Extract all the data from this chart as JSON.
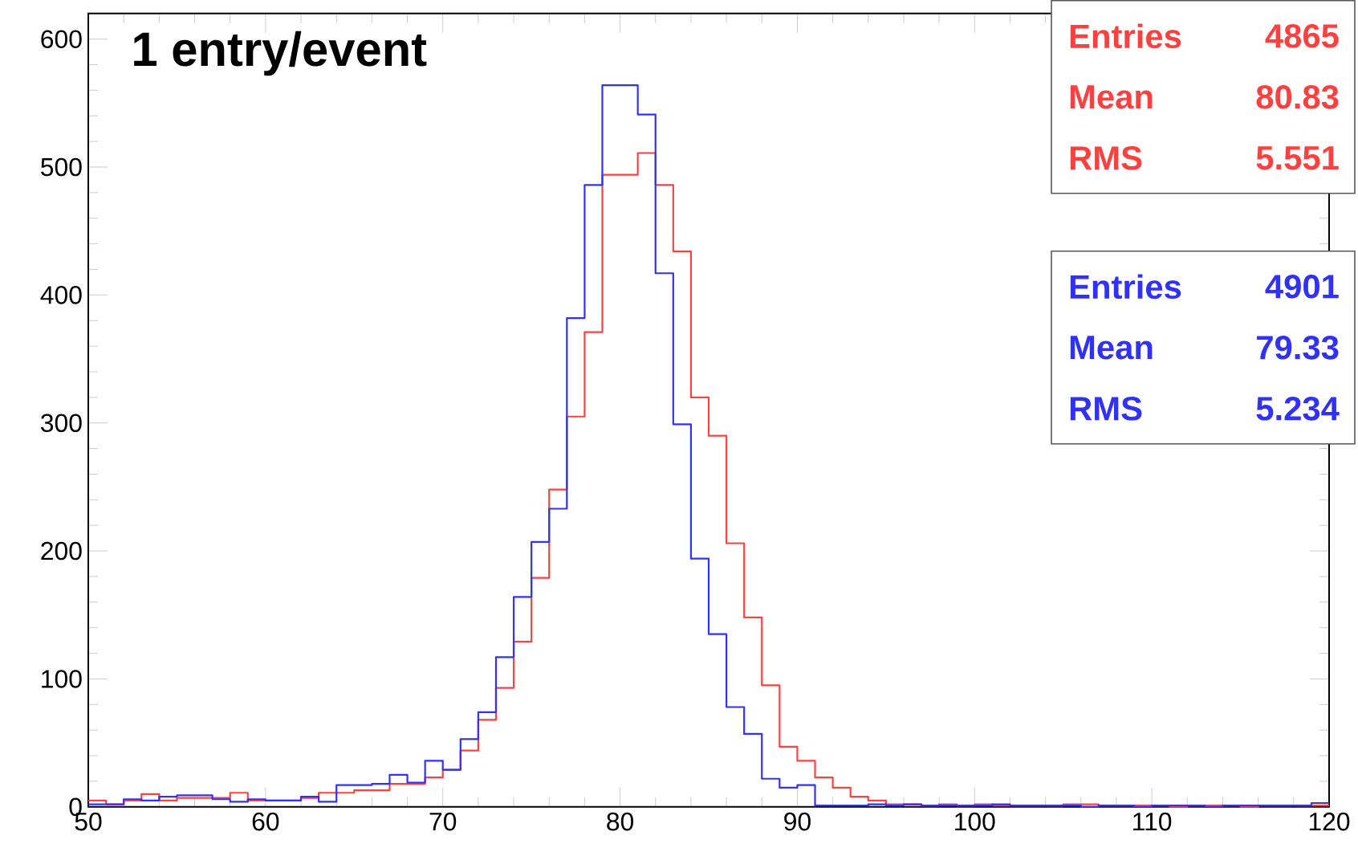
{
  "chart_data": {
    "type": "histogram",
    "title": "1 entry/event",
    "bins": [
      50,
      51,
      52,
      53,
      54,
      55,
      56,
      57,
      58,
      59,
      60,
      61,
      62,
      63,
      64,
      65,
      66,
      67,
      68,
      69,
      70,
      71,
      72,
      73,
      74,
      75,
      76,
      77,
      78,
      79,
      80,
      81,
      82,
      83,
      84,
      85,
      86,
      87,
      88,
      89,
      90,
      91,
      92,
      93,
      94,
      95,
      96,
      97,
      98,
      99,
      100,
      101,
      102,
      103,
      104,
      105,
      106,
      107,
      108,
      109,
      110,
      111,
      112,
      113,
      114,
      115,
      116,
      117,
      118,
      119,
      120
    ],
    "series": [
      {
        "color": "#ff4040",
        "values": [
          5,
          2,
          5,
          10,
          5,
          7,
          7,
          7,
          11,
          5,
          5,
          5,
          7,
          11,
          11,
          13,
          13,
          18,
          18,
          23,
          29,
          44,
          68,
          93,
          129,
          179,
          248,
          305,
          371,
          494,
          494,
          511,
          486,
          434,
          320,
          290,
          206,
          148,
          95,
          47,
          36,
          23,
          15,
          8,
          5,
          2,
          2,
          1,
          2,
          1,
          2,
          1,
          1,
          1,
          1,
          2,
          2,
          1,
          1,
          1,
          1,
          0,
          1,
          1,
          1,
          0,
          1,
          1,
          1,
          1
        ]
      },
      {
        "color": "#3030ff",
        "values": [
          2,
          2,
          6,
          5,
          8,
          9,
          9,
          6,
          4,
          6,
          5,
          5,
          8,
          4,
          17,
          17,
          18,
          25,
          19,
          36,
          29,
          53,
          74,
          117,
          164,
          207,
          233,
          382,
          486,
          564,
          564,
          541,
          417,
          299,
          194,
          135,
          78,
          57,
          22,
          15,
          17,
          1,
          1,
          1,
          2,
          1,
          2,
          1,
          1,
          1,
          1,
          2,
          1,
          1,
          1,
          1,
          0,
          1,
          1,
          0,
          1,
          1,
          1,
          0,
          1,
          1,
          1,
          1,
          1,
          3
        ]
      }
    ],
    "xlim": [
      50,
      120
    ],
    "ylim": [
      0,
      620
    ],
    "xticks": [
      50,
      60,
      70,
      80,
      90,
      100,
      110,
      120
    ],
    "yticks": [
      0,
      100,
      200,
      300,
      400,
      500,
      600
    ],
    "annotations": [
      "Entries",
      "4865",
      "Mean",
      "80.83",
      "RMS",
      "5.551",
      "Entries",
      "4901",
      "Mean",
      "79.33",
      "RMS",
      "5.234"
    ]
  }
}
